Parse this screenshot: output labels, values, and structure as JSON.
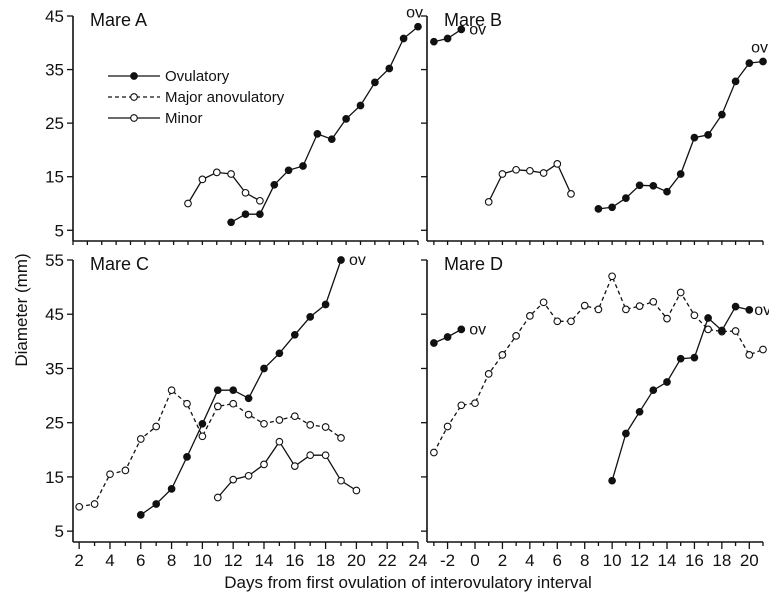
{
  "chart_data": {
    "type": "line",
    "ylabel": "Diameter (mm)",
    "xlabel": "Days from first ovulation of interovulatory interval",
    "legend": {
      "placement": "top-left of Mare A panel",
      "entries": [
        {
          "label": "Ovulatory",
          "style": "ovulatory"
        },
        {
          "label": "Major anovulatory",
          "style": "major"
        },
        {
          "label": "Minor",
          "style": "minor"
        }
      ]
    },
    "series_styles": {
      "ovulatory": {
        "line": "solid",
        "marker": "filled"
      },
      "major": {
        "line": "dashed",
        "marker": "open"
      },
      "minor": {
        "line": "solid",
        "marker": "open"
      }
    },
    "panels": [
      {
        "id": "A",
        "title": "Mare A",
        "xlim": [
          0,
          24
        ],
        "ylim": [
          3,
          45
        ],
        "yticks": [
          5,
          15,
          25,
          35,
          45
        ],
        "series": [
          {
            "style": "minor",
            "x": [
              8,
              9,
              10,
              11,
              12,
              13
            ],
            "y": [
              10,
              14.5,
              15.8,
              15.5,
              12,
              10.5
            ]
          },
          {
            "style": "ovulatory",
            "x": [
              11,
              12,
              13,
              14,
              15,
              16,
              17,
              18,
              19,
              20,
              21,
              22,
              23,
              24
            ],
            "y": [
              6.5,
              8,
              8,
              13.5,
              16.2,
              17,
              23,
              22,
              25.8,
              28.3,
              32.6,
              35.2,
              40.8,
              43
            ],
            "ov_label": "ov"
          }
        ]
      },
      {
        "id": "B",
        "title": "Mare B",
        "xlim": [
          -3.5,
          21
        ],
        "ylim": [
          3,
          45
        ],
        "yticks": [
          5,
          15,
          25,
          35,
          45
        ],
        "series": [
          {
            "style": "ovulatory",
            "x": [
              -3,
              -2,
              -1
            ],
            "y": [
              40.2,
              40.8,
              42.5
            ],
            "ov_label": "ov"
          },
          {
            "style": "minor",
            "x": [
              1,
              2,
              3,
              4,
              5,
              6,
              7
            ],
            "y": [
              10.3,
              15.5,
              16.3,
              16.1,
              15.7,
              17.4,
              11.8
            ]
          },
          {
            "style": "ovulatory",
            "x": [
              9,
              10,
              11,
              12,
              13,
              14,
              15,
              16,
              17,
              18,
              19,
              20,
              21
            ],
            "y": [
              9,
              9.3,
              11,
              13.4,
              13.3,
              12.2,
              15.5,
              22.3,
              22.8,
              26.6,
              32.8,
              36.2,
              36.5
            ],
            "ov_label": "ov"
          }
        ]
      },
      {
        "id": "C",
        "title": "Mare C",
        "xlim": [
          1.6,
          24
        ],
        "xticks": [
          2,
          4,
          6,
          8,
          10,
          12,
          14,
          16,
          18,
          20,
          22,
          24
        ],
        "ylim": [
          3,
          55
        ],
        "yticks": [
          5,
          15,
          25,
          35,
          45,
          55
        ],
        "series": [
          {
            "style": "major",
            "x": [
              2,
              3,
              4,
              5,
              6,
              7,
              8,
              9,
              10,
              11,
              12,
              13,
              14,
              15,
              16,
              17,
              18,
              19
            ],
            "y": [
              9.5,
              10,
              15.5,
              16.2,
              22,
              24.3,
              31,
              28.5,
              22.5,
              28,
              28.5,
              26.5,
              24.8,
              25.5,
              26.2,
              24.6,
              24.2,
              22.2
            ]
          },
          {
            "style": "ovulatory",
            "x": [
              6,
              7,
              8,
              9,
              10,
              11,
              12,
              13,
              14,
              15,
              16,
              17,
              18,
              19
            ],
            "y": [
              8,
              10,
              12.8,
              18.7,
              24.8,
              31,
              31,
              29.5,
              35,
              37.8,
              41.2,
              44.5,
              46.8,
              55
            ],
            "ov_label": "ov"
          },
          {
            "style": "minor",
            "x": [
              11,
              12,
              13,
              14,
              15,
              16,
              17,
              18,
              19,
              20
            ],
            "y": [
              11.2,
              14.5,
              15.2,
              17.3,
              21.5,
              17,
              19,
              19,
              14.3,
              12.5
            ]
          }
        ]
      },
      {
        "id": "D",
        "title": "Mare D",
        "xlim": [
          -3.5,
          21
        ],
        "xticks": [
          -2,
          0,
          2,
          4,
          6,
          8,
          10,
          12,
          14,
          16,
          18,
          20
        ],
        "ylim": [
          3,
          55
        ],
        "yticks": [
          5,
          15,
          25,
          35,
          45,
          55
        ],
        "series": [
          {
            "style": "ovulatory",
            "x": [
              -3,
              -2,
              -1
            ],
            "y": [
              39.7,
              40.8,
              42.2
            ],
            "ov_label": "ov"
          },
          {
            "style": "major",
            "x": [
              -3,
              -2,
              -1,
              0,
              1,
              2,
              3,
              4,
              5,
              6,
              7,
              8,
              9,
              10,
              11,
              12,
              13,
              14,
              15,
              16,
              17,
              18,
              19,
              20,
              21
            ],
            "y": [
              19.5,
              24.3,
              28.2,
              28.6,
              34,
              37.5,
              41,
              44.7,
              47.2,
              43.7,
              43.7,
              46.6,
              45.9,
              52,
              45.9,
              46.5,
              47.3,
              44.2,
              49,
              44.8,
              42.2,
              41.8,
              41.9,
              37.5,
              38.5
            ]
          },
          {
            "style": "ovulatory",
            "x": [
              10,
              11,
              12,
              13,
              14,
              15,
              16,
              17,
              18,
              19,
              20
            ],
            "y": [
              14.3,
              23,
              27,
              31,
              32.5,
              36.8,
              37,
              44.3,
              42,
              46.4,
              45.8
            ],
            "ov_label": "ov"
          }
        ]
      }
    ]
  }
}
